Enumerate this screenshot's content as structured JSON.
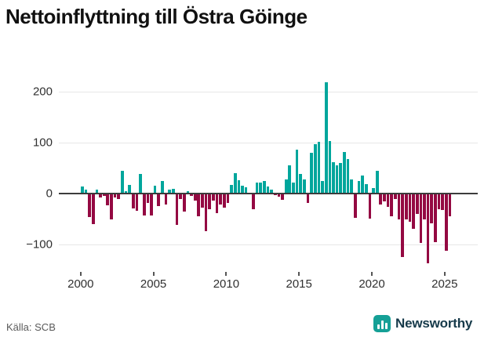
{
  "title": "Nettoinflyttning till Östra Göinge",
  "source": "Källa: SCB",
  "branding": {
    "name": "Newsworthy",
    "icon": "newsworthy-bar-chart-icon",
    "icon_color": "#15a096",
    "text_color": "#163a4a"
  },
  "colors": {
    "positive": "#00a69c",
    "negative": "#940942",
    "grid": "#e7e7e7",
    "zero_line": "#3c3c3c",
    "axis_text": "#303030"
  },
  "chart_data": {
    "type": "bar",
    "title": "Nettoinflyttning till Östra Göinge",
    "xlabel": "",
    "ylabel": "",
    "grid": "horizontal",
    "legend": "none",
    "ylim": [
      -150,
      235
    ],
    "y_ticks": [
      200,
      100,
      0,
      -100
    ],
    "x_tick_years": [
      2000,
      2005,
      2010,
      2015,
      2020,
      2025
    ],
    "quarters": [
      "2000Q1",
      "2000Q2",
      "2000Q3",
      "2000Q4",
      "2001Q1",
      "2001Q2",
      "2001Q3",
      "2001Q4",
      "2002Q1",
      "2002Q2",
      "2002Q3",
      "2002Q4",
      "2003Q1",
      "2003Q2",
      "2003Q3",
      "2003Q4",
      "2004Q1",
      "2004Q2",
      "2004Q3",
      "2004Q4",
      "2005Q1",
      "2005Q2",
      "2005Q3",
      "2005Q4",
      "2006Q1",
      "2006Q2",
      "2006Q3",
      "2006Q4",
      "2007Q1",
      "2007Q2",
      "2007Q3",
      "2007Q4",
      "2008Q1",
      "2008Q2",
      "2008Q3",
      "2008Q4",
      "2009Q1",
      "2009Q2",
      "2009Q3",
      "2009Q4",
      "2010Q1",
      "2010Q2",
      "2010Q3",
      "2010Q4",
      "2011Q1",
      "2011Q2",
      "2011Q3",
      "2011Q4",
      "2012Q1",
      "2012Q2",
      "2012Q3",
      "2012Q4",
      "2013Q1",
      "2013Q2",
      "2013Q3",
      "2013Q4",
      "2014Q1",
      "2014Q2",
      "2014Q3",
      "2014Q4",
      "2015Q1",
      "2015Q2",
      "2015Q3",
      "2015Q4",
      "2016Q1",
      "2016Q2",
      "2016Q3",
      "2016Q4",
      "2017Q1",
      "2017Q2",
      "2017Q3",
      "2017Q4",
      "2018Q1",
      "2018Q2",
      "2018Q3",
      "2018Q4",
      "2019Q1",
      "2019Q2",
      "2019Q3",
      "2019Q4",
      "2020Q1",
      "2020Q2",
      "2020Q3",
      "2020Q4",
      "2021Q1",
      "2021Q2",
      "2021Q3",
      "2021Q4",
      "2022Q1",
      "2022Q2",
      "2022Q3",
      "2022Q4",
      "2023Q1",
      "2023Q2",
      "2023Q3",
      "2023Q4",
      "2024Q1",
      "2024Q2",
      "2024Q3",
      "2024Q4",
      "2025Q1",
      "2025Q2"
    ],
    "values": [
      14,
      8,
      -46,
      -60,
      7,
      -8,
      -4,
      -23,
      -51,
      -8,
      -10,
      45,
      5,
      17,
      -29,
      -34,
      38,
      -43,
      -18,
      -43,
      16,
      -24,
      25,
      -21,
      8,
      10,
      -62,
      -10,
      -36,
      5,
      -5,
      -14,
      -45,
      -28,
      -74,
      -31,
      -14,
      -38,
      -21,
      -27,
      -18,
      17,
      40,
      26,
      15,
      12,
      0,
      -31,
      21,
      21,
      24,
      14,
      7,
      -3,
      -6,
      -12,
      28,
      56,
      21,
      86,
      38,
      27,
      -18,
      80,
      97,
      102,
      25,
      219,
      103,
      62,
      56,
      60,
      81,
      67,
      28,
      -47,
      25,
      35,
      18,
      -49,
      11,
      44,
      -22,
      -15,
      -26,
      -44,
      -10,
      -50,
      -124,
      -50,
      -56,
      -69,
      -40,
      -97,
      -51,
      -137,
      -59,
      -95,
      -30,
      -33,
      -113,
      -44
    ]
  }
}
